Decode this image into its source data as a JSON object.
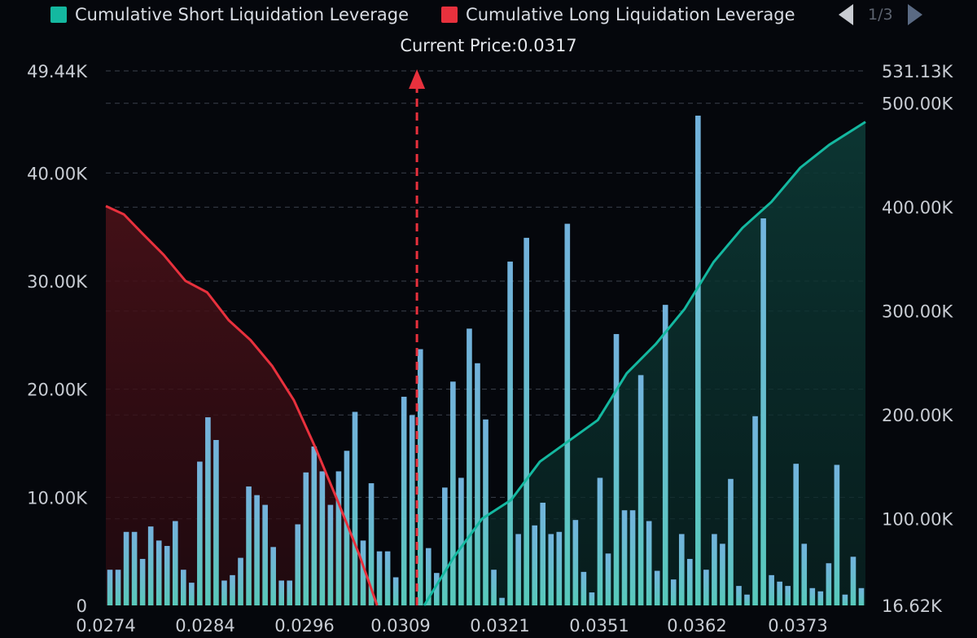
{
  "legend": {
    "short_label": "Cumulative Short Liquidation Leverage",
    "long_label": "Cumulative Long Liquidation Leverage",
    "short_color": "#14b8a0",
    "long_color": "#e8313d"
  },
  "pager": {
    "text": "1/3"
  },
  "current_price_label": "Current Price:0.0317",
  "chart_data": {
    "type": "bar",
    "current_price": 0.0317,
    "x_range": [
      0.0274,
      0.0379
    ],
    "x_ticks": [
      "0.0274",
      "0.0284",
      "0.0296",
      "0.0309",
      "0.0321",
      "0.0351",
      "0.0362",
      "0.0373"
    ],
    "left_axis": {
      "ticks": [
        "0",
        "10.00K",
        "20.00K",
        "30.00K",
        "40.00K",
        "49.44K"
      ],
      "range": [
        0,
        49440
      ]
    },
    "right_axis": {
      "ticks": [
        "16.62K",
        "100.00K",
        "200.00K",
        "300.00K",
        "400.00K",
        "500.00K",
        "531.13K"
      ],
      "range": [
        16620,
        531130
      ]
    },
    "grid": true,
    "legend_position": "top",
    "bars": {
      "values": [
        3300,
        3300,
        6800,
        6800,
        4300,
        7300,
        6000,
        5500,
        7800,
        3300,
        2100,
        13300,
        17400,
        15300,
        2300,
        2800,
        4400,
        11000,
        10200,
        9300,
        5400,
        2300,
        2300,
        7500,
        12300,
        14700,
        12400,
        9300,
        12400,
        14300,
        17900,
        6000,
        11300,
        5000,
        5000,
        2600,
        19300,
        17600,
        23700,
        5300,
        3000,
        10900,
        20700,
        11800,
        25600,
        22400,
        17200,
        3300,
        700,
        31800,
        6600,
        34000,
        7400,
        9500,
        6600,
        6800,
        35300,
        7900,
        3100,
        1200,
        11800,
        4800,
        25100,
        8800,
        8800,
        21300,
        7800,
        3200,
        27800,
        2400,
        6600,
        4300,
        45300,
        3300,
        6600,
        5700,
        11700,
        1800,
        1000,
        17500,
        35800,
        2800,
        2200,
        1800,
        13100,
        5700,
        1600,
        1300,
        3900,
        13000,
        1000,
        4500,
        1600
      ]
    },
    "series": [
      {
        "name": "Cumulative Long Liquidation Leverage",
        "x": [
          0.0274,
          0.02765,
          0.0279,
          0.0282,
          0.0285,
          0.0288,
          0.0291,
          0.0294,
          0.0297,
          0.03,
          0.0303,
          0.0306,
          0.0309,
          0.03115
        ],
        "y": [
          401000,
          393000,
          375000,
          354000,
          329000,
          318000,
          291000,
          272000,
          247000,
          214000,
          168000,
          118000,
          66000,
          16620
        ]
      },
      {
        "name": "Cumulative Short Liquidation Leverage",
        "x": [
          0.0318,
          0.0322,
          0.0326,
          0.033,
          0.0334,
          0.0338,
          0.0342,
          0.0346,
          0.035,
          0.0354,
          0.0358,
          0.0362,
          0.0366,
          0.037,
          0.0374,
          0.0379
        ],
        "y": [
          16620,
          62000,
          100000,
          118000,
          155000,
          175000,
          195000,
          240000,
          268000,
          302000,
          347000,
          380000,
          405000,
          438000,
          460000,
          482000
        ]
      }
    ]
  }
}
